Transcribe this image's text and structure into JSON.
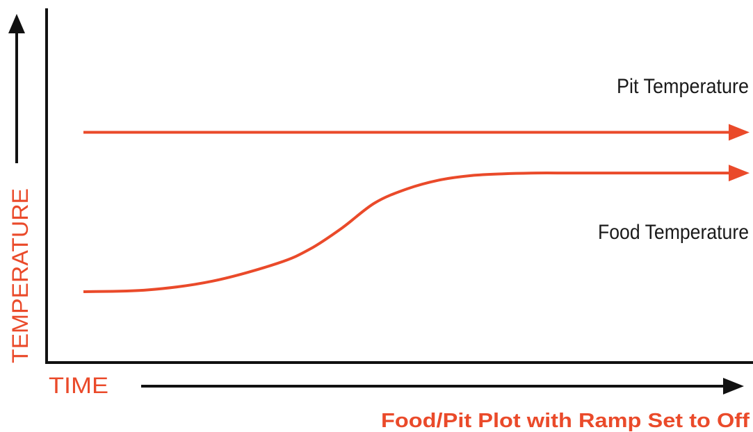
{
  "chart_data": {
    "type": "line",
    "title": "Food/Pit Plot with Ramp Set to Off",
    "xlabel": "TIME",
    "ylabel": "TEMPERATURE",
    "grid": false,
    "legend": "none",
    "series_color": "#ea4a2a",
    "axis_color": "#111111",
    "xlim": [
      0,
      100
    ],
    "ylim": [
      0,
      100
    ],
    "series": [
      {
        "name": "Pit Temperature",
        "x": [
          0,
          100
        ],
        "y": [
          65,
          65
        ]
      },
      {
        "name": "Food Temperature",
        "x": [
          0,
          10,
          20,
          30,
          35,
          40,
          45,
          50,
          55,
          60,
          65,
          70,
          75,
          80,
          90,
          100
        ],
        "y": [
          20,
          20.5,
          23,
          28,
          32,
          38,
          45,
          49,
          51.5,
          52.8,
          53.3,
          53.5,
          53.5,
          53.5,
          53.5,
          53.5
        ]
      }
    ]
  }
}
